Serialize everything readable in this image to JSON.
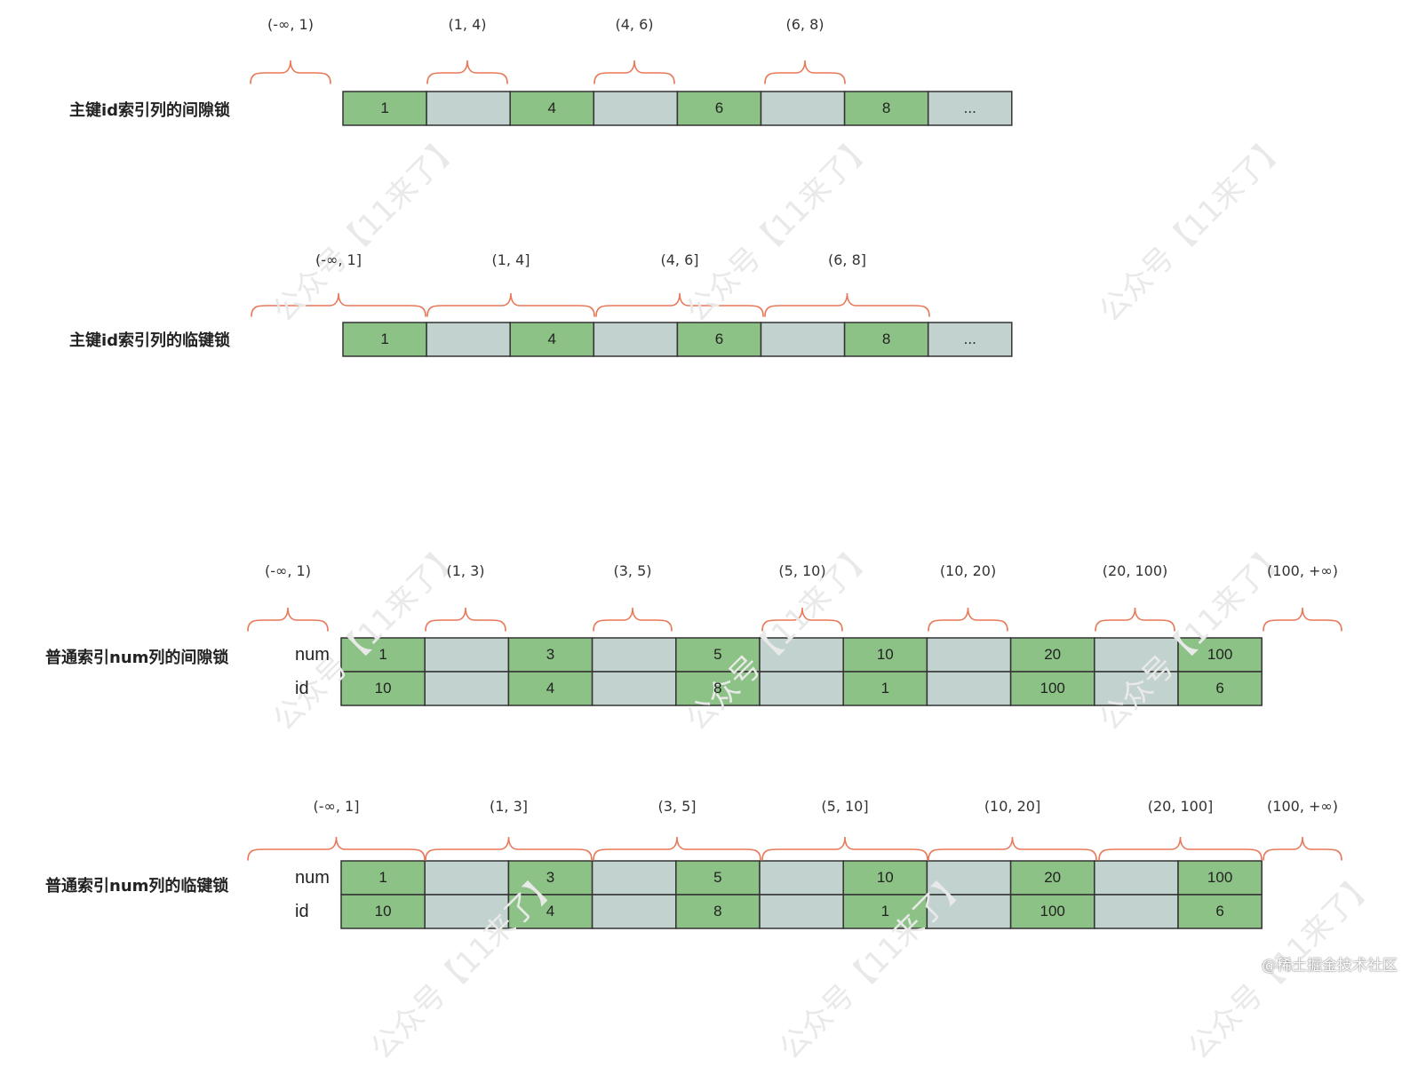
{
  "colors": {
    "value_cell": "#8cc285",
    "gap_cell": "#c2d2cf",
    "cell_border": "#333333",
    "brace": "#e8795a"
  },
  "watermark": "公众号【11来了】",
  "footer": "@稀土掘金技术社区",
  "sections": [
    {
      "title": "主键id索引列的间隙锁",
      "row_labels": [],
      "rows": [
        [
          "1",
          "",
          "4",
          "",
          "6",
          "",
          "8",
          "..."
        ]
      ],
      "brace_style": "open",
      "intervals": [
        "(-∞, 1)",
        "(1, 4)",
        "(4,  6)",
        "(6,  8)"
      ]
    },
    {
      "title": "主键id索引列的临键锁",
      "row_labels": [],
      "rows": [
        [
          "1",
          "",
          "4",
          "",
          "6",
          "",
          "8",
          "..."
        ]
      ],
      "brace_style": "closed",
      "intervals": [
        "(-∞, 1]",
        "(1, 4]",
        "(4,  6]",
        "(6,  8]"
      ]
    },
    {
      "title": "普通索引num列的间隙锁",
      "row_labels": [
        "num",
        "id"
      ],
      "rows": [
        [
          "1",
          "",
          "3",
          "",
          "5",
          "",
          "10",
          "",
          "20",
          "",
          "100"
        ],
        [
          "10",
          "",
          "4",
          "",
          "8",
          "",
          "1",
          "",
          "100",
          "",
          "6"
        ]
      ],
      "brace_style": "open",
      "intervals": [
        "(-∞, 1)",
        "(1, 3)",
        "(3, 5)",
        "(5, 10)",
        "(10, 20)",
        "(20, 100)",
        "(100,  +∞)"
      ]
    },
    {
      "title": "普通索引num列的临键锁",
      "row_labels": [
        "num",
        "id"
      ],
      "rows": [
        [
          "1",
          "",
          "3",
          "",
          "5",
          "",
          "10",
          "",
          "20",
          "",
          "100"
        ],
        [
          "10",
          "",
          "4",
          "",
          "8",
          "",
          "1",
          "",
          "100",
          "",
          "6"
        ]
      ],
      "brace_style": "closed",
      "intervals": [
        "(-∞, 1]",
        "(1, 3]",
        "(3, 5]",
        "(5, 10]",
        "(10, 20]",
        "(20, 100]",
        "(100,  +∞)"
      ]
    }
  ]
}
